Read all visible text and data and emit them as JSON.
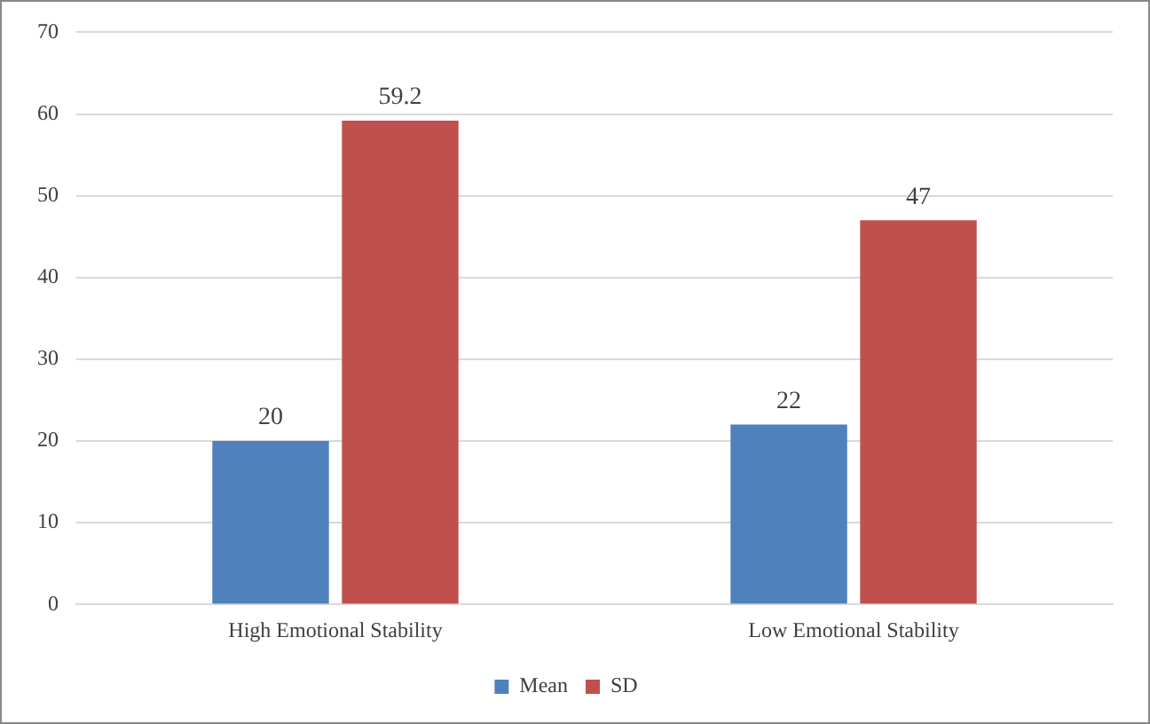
{
  "chart_data": {
    "type": "bar",
    "categories": [
      "High Emotional Stability",
      "Low Emotional Stability"
    ],
    "series": [
      {
        "name": "Mean",
        "color": "#4f81bd",
        "values": [
          20,
          22
        ]
      },
      {
        "name": "SD",
        "color": "#c0504d",
        "values": [
          59.2,
          47
        ]
      }
    ],
    "ylim": [
      0,
      70
    ],
    "yticks": [
      0,
      10,
      20,
      30,
      40,
      50,
      60,
      70
    ],
    "grid": "y",
    "legend": "bottom",
    "data_labels": true
  }
}
